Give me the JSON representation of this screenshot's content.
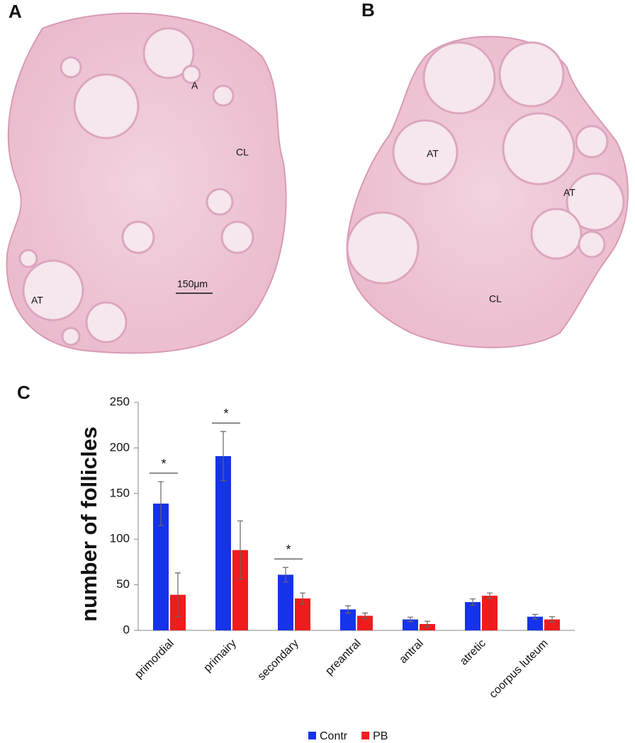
{
  "panels": {
    "A": {
      "letter": "A",
      "labels": [
        "A",
        "CL",
        "AT"
      ],
      "scale_bar": "150μm"
    },
    "B": {
      "letter": "B",
      "labels": [
        "AT",
        "AT",
        "CL"
      ]
    },
    "C": {
      "letter": "C"
    }
  },
  "chart_data": {
    "type": "bar",
    "y_label": "number of follicles",
    "categories": [
      "primordial",
      "primairy",
      "secondary",
      "preantral",
      "antral",
      "atretic",
      "coorpus luteum"
    ],
    "series": [
      {
        "name": "Contr",
        "color": "#1533e8",
        "values": [
          139,
          191,
          61,
          23,
          12,
          31,
          15
        ],
        "errors": [
          24,
          27,
          8,
          4,
          2.5,
          3.5,
          2.5
        ]
      },
      {
        "name": "PB",
        "color": "#ee1c1c",
        "values": [
          39,
          88,
          35,
          16,
          7,
          38,
          12
        ],
        "errors": [
          24,
          32,
          6,
          3,
          3,
          3,
          3
        ]
      }
    ],
    "significance": [
      {
        "category": "primordial",
        "label": "*"
      },
      {
        "category": "primairy",
        "label": "*"
      },
      {
        "category": "secondary",
        "label": "*"
      }
    ],
    "ylim": [
      0,
      250
    ],
    "yticks": [
      0,
      50,
      100,
      150,
      200,
      250
    ],
    "grid": false,
    "legend": "bottom"
  }
}
